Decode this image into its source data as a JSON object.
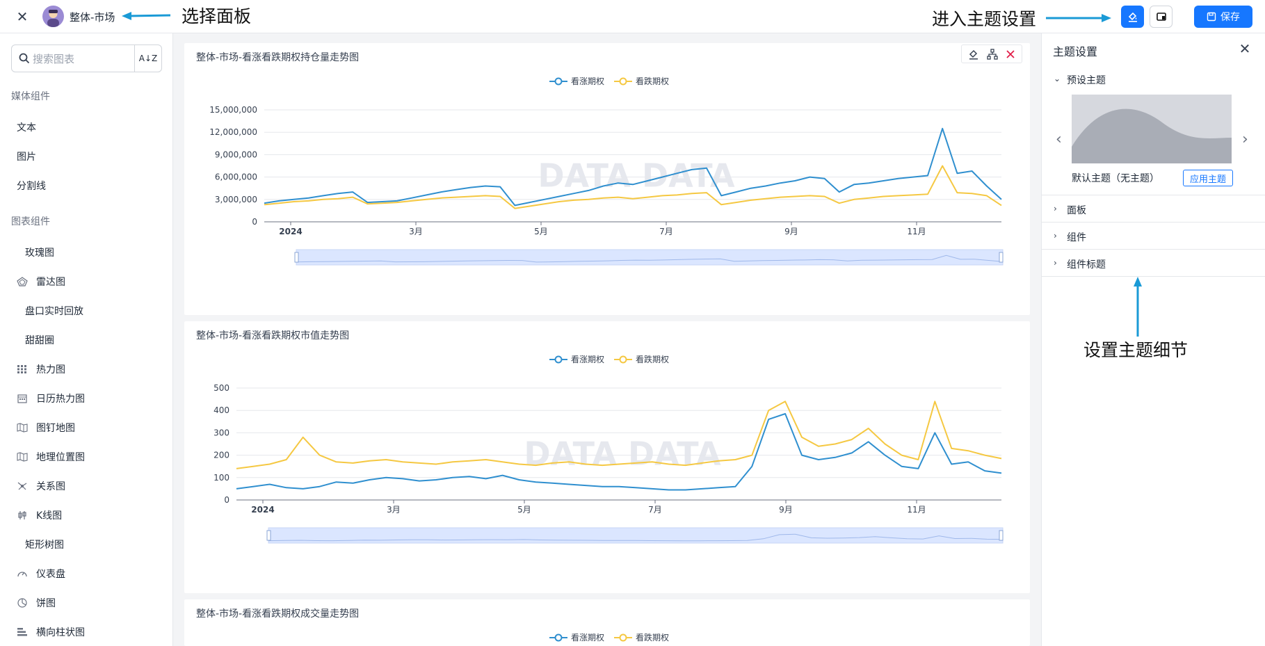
{
  "header": {
    "close_glyph": "✕",
    "panel_name": "整体-市场",
    "annotation_select": "选择面板",
    "annotation_theme": "进入主题设置",
    "save_label": "保存"
  },
  "sidebar": {
    "search_placeholder": "搜索图表",
    "sort_label": "A↓Z",
    "sections": [
      {
        "title": "媒体组件",
        "items": [
          {
            "label": "文本",
            "icon": ""
          },
          {
            "label": "图片",
            "icon": ""
          },
          {
            "label": "分割线",
            "icon": ""
          }
        ]
      },
      {
        "title": "图表组件",
        "items": [
          {
            "label": "玫瑰图",
            "icon": ""
          },
          {
            "label": "雷达图",
            "icon": "radar-icon"
          },
          {
            "label": "盘口实时回放",
            "icon": ""
          },
          {
            "label": "甜甜圈",
            "icon": ""
          },
          {
            "label": "热力图",
            "icon": "grid-icon"
          },
          {
            "label": "日历热力图",
            "icon": "calendar-icon"
          },
          {
            "label": "图钉地图",
            "icon": "map-icon"
          },
          {
            "label": "地理位置图",
            "icon": "map-icon"
          },
          {
            "label": "关系图",
            "icon": "graph-icon"
          },
          {
            "label": "K线图",
            "icon": "candlestick-icon"
          },
          {
            "label": "矩形树图",
            "icon": ""
          },
          {
            "label": "仪表盘",
            "icon": "gauge-icon"
          },
          {
            "label": "饼图",
            "icon": "pie-icon"
          },
          {
            "label": "横向柱状图",
            "icon": "hbar-icon"
          }
        ]
      }
    ]
  },
  "main": {
    "watermark": "DATA DATA",
    "cards": [
      {
        "title": "整体-市场-看涨看跌期权持仓量走势图"
      },
      {
        "title": "整体-市场-看涨看跌期权市值走势图"
      },
      {
        "title": "整体-市场-看涨看跌期权成交量走势图"
      }
    ]
  },
  "theme_panel": {
    "title": "主题设置",
    "close_glyph": "✕",
    "preset_label": "预设主题",
    "theme_name": "默认主题（无主题）",
    "apply_label": "应用主题",
    "rows": [
      "面板",
      "组件",
      "组件标题"
    ],
    "annotation_detail": "设置主题细节"
  },
  "colors": {
    "accent": "#1677ff",
    "call": "#2f8fcf",
    "put": "#f5c842"
  },
  "chart_data": [
    {
      "type": "line",
      "title": "整体-市场-看涨看跌期权持仓量走势图",
      "x_tick_labels": [
        "2024",
        "3月",
        "5月",
        "7月",
        "9月",
        "11月"
      ],
      "y_tick_labels": [
        "0",
        "3,000,000",
        "6,000,000",
        "9,000,000",
        "12,000,000",
        "15,000,000"
      ],
      "ylim": [
        0,
        15000000
      ],
      "series": [
        {
          "name": "看涨期权",
          "color": "#2f8fcf",
          "values": [
            2500000,
            2800000,
            3000000,
            3200000,
            3500000,
            3800000,
            4000000,
            2600000,
            2700000,
            2800000,
            3200000,
            3600000,
            4000000,
            4300000,
            4600000,
            4800000,
            4700000,
            2200000,
            2600000,
            3000000,
            3400000,
            3800000,
            4200000,
            4800000,
            5200000,
            5000000,
            5500000,
            6000000,
            6500000,
            7000000,
            7200000,
            3500000,
            4000000,
            4500000,
            4800000,
            5200000,
            5500000,
            6000000,
            5800000,
            4000000,
            5000000,
            5200000,
            5500000,
            5800000,
            6000000,
            6200000,
            12500000,
            6500000,
            6800000,
            4800000,
            3000000
          ]
        },
        {
          "name": "看跌期权",
          "color": "#f5c842",
          "values": [
            2300000,
            2500000,
            2700000,
            2800000,
            3000000,
            3100000,
            3300000,
            2400000,
            2500000,
            2600000,
            2800000,
            3000000,
            3200000,
            3300000,
            3400000,
            3500000,
            3400000,
            1800000,
            2100000,
            2400000,
            2700000,
            2900000,
            3000000,
            3200000,
            3300000,
            3100000,
            3300000,
            3500000,
            3600000,
            3800000,
            3900000,
            2300000,
            2600000,
            2900000,
            3100000,
            3300000,
            3400000,
            3500000,
            3400000,
            2500000,
            3000000,
            3200000,
            3400000,
            3500000,
            3600000,
            3700000,
            7500000,
            3900000,
            3800000,
            3500000,
            2200000
          ]
        }
      ]
    },
    {
      "type": "line",
      "title": "整体-市场-看涨看跌期权市值走势图",
      "x_tick_labels": [
        "2024",
        "3月",
        "5月",
        "7月",
        "9月",
        "11月"
      ],
      "y_tick_labels": [
        "0",
        "100",
        "200",
        "300",
        "400",
        "500"
      ],
      "ylim": [
        0,
        500
      ],
      "series": [
        {
          "name": "看涨期权",
          "color": "#2f8fcf",
          "values": [
            50,
            60,
            70,
            55,
            50,
            60,
            80,
            75,
            90,
            100,
            95,
            85,
            90,
            100,
            105,
            95,
            110,
            90,
            80,
            75,
            70,
            65,
            60,
            60,
            55,
            50,
            45,
            45,
            50,
            55,
            60,
            150,
            360,
            385,
            200,
            180,
            190,
            210,
            260,
            200,
            150,
            140,
            300,
            160,
            170,
            130,
            120
          ]
        },
        {
          "name": "看跌期权",
          "color": "#f5c842",
          "values": [
            140,
            150,
            160,
            180,
            280,
            200,
            170,
            165,
            175,
            180,
            170,
            165,
            160,
            170,
            175,
            180,
            170,
            160,
            155,
            165,
            170,
            160,
            155,
            160,
            165,
            170,
            160,
            155,
            165,
            175,
            180,
            200,
            400,
            440,
            280,
            240,
            250,
            270,
            320,
            250,
            200,
            180,
            440,
            230,
            220,
            200,
            185
          ]
        }
      ]
    },
    {
      "type": "line",
      "title": "整体-市场-看涨看跌期权成交量走势图",
      "series": [
        {
          "name": "看涨期权",
          "color": "#2f8fcf"
        },
        {
          "name": "看跌期权",
          "color": "#f5c842"
        }
      ]
    }
  ]
}
